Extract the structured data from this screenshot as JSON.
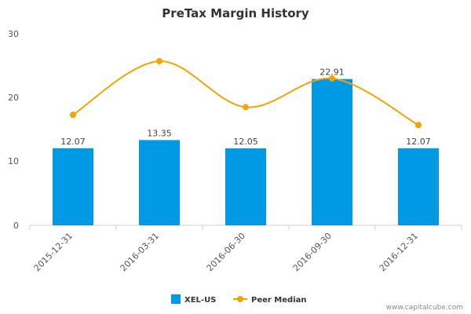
{
  "chart_data": {
    "type": "bar",
    "title": "PreTax Margin History",
    "categories": [
      "2015-12-31",
      "2016-03-31",
      "2016-06-30",
      "2016-09-30",
      "2016-12-31"
    ],
    "series": [
      {
        "name": "XEL-US",
        "type": "bar",
        "color": "#0099e6",
        "values": [
          12.07,
          13.35,
          12.05,
          22.91,
          12.07
        ],
        "labels": [
          "12.07",
          "13.35",
          "12.05",
          "22.91",
          "12.07"
        ]
      },
      {
        "name": "Peer Median",
        "type": "line",
        "color": "#f5a300",
        "values": [
          17.3,
          25.7,
          18.5,
          23.0,
          15.7
        ]
      }
    ],
    "yticks": [
      "0",
      "10",
      "20",
      "30"
    ],
    "ylim": [
      0,
      30
    ],
    "legend_position": "bottom-center",
    "grid": false
  },
  "watermark": "www.capitalcube.com"
}
